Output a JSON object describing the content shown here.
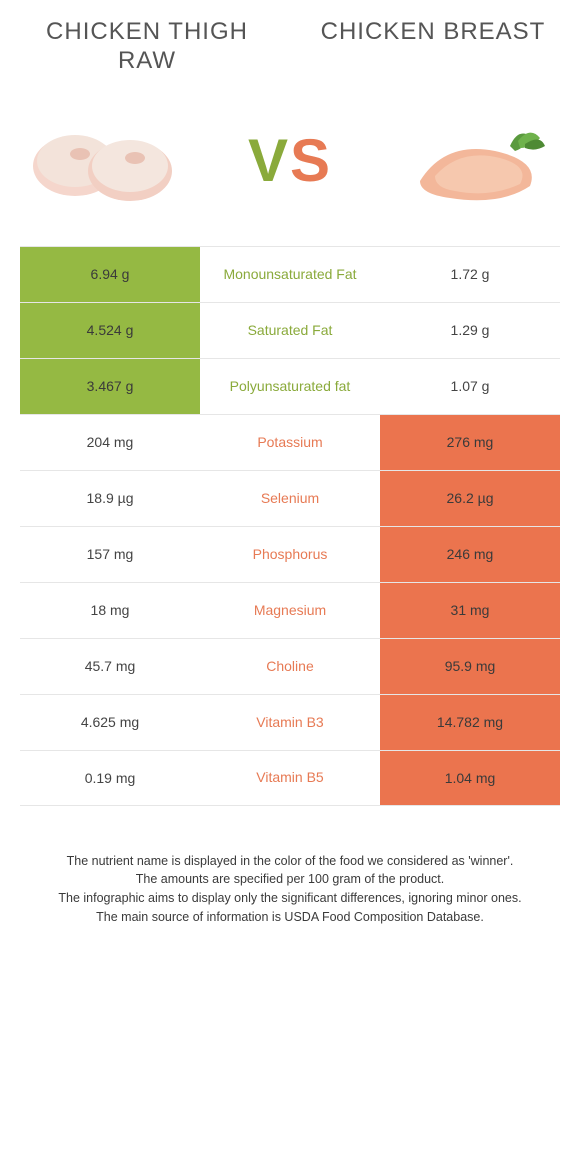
{
  "titles": {
    "left": "CHICKEN THIGH RAW",
    "right": "CHICKEN BREAST"
  },
  "vs": {
    "v": "V",
    "s": "S"
  },
  "colors": {
    "green": "#95b943",
    "orange": "#eb744e",
    "green_text": "#8aaa3b",
    "orange_text": "#e77a54"
  },
  "rows": [
    {
      "left": "6.94 g",
      "mid": "Monounsaturated Fat",
      "right": "1.72 g",
      "winner": "left"
    },
    {
      "left": "4.524 g",
      "mid": "Saturated Fat",
      "right": "1.29 g",
      "winner": "left"
    },
    {
      "left": "3.467 g",
      "mid": "Polyunsaturated fat",
      "right": "1.07 g",
      "winner": "left"
    },
    {
      "left": "204 mg",
      "mid": "Potassium",
      "right": "276 mg",
      "winner": "right"
    },
    {
      "left": "18.9 µg",
      "mid": "Selenium",
      "right": "26.2 µg",
      "winner": "right"
    },
    {
      "left": "157 mg",
      "mid": "Phosphorus",
      "right": "246 mg",
      "winner": "right"
    },
    {
      "left": "18 mg",
      "mid": "Magnesium",
      "right": "31 mg",
      "winner": "right"
    },
    {
      "left": "45.7 mg",
      "mid": "Choline",
      "right": "95.9 mg",
      "winner": "right"
    },
    {
      "left": "4.625 mg",
      "mid": "Vitamin B3",
      "right": "14.782 mg",
      "winner": "right"
    },
    {
      "left": "0.19 mg",
      "mid": "Vitamin B5",
      "right": "1.04 mg",
      "winner": "right"
    }
  ],
  "footer": {
    "l1": "The nutrient name is displayed in the color of the food we considered as 'winner'.",
    "l2": "The amounts are specified per 100 gram of the product.",
    "l3": "The infographic aims to display only the significant differences, ignoring minor ones.",
    "l4": "The main source of information is USDA Food Composition Database."
  }
}
